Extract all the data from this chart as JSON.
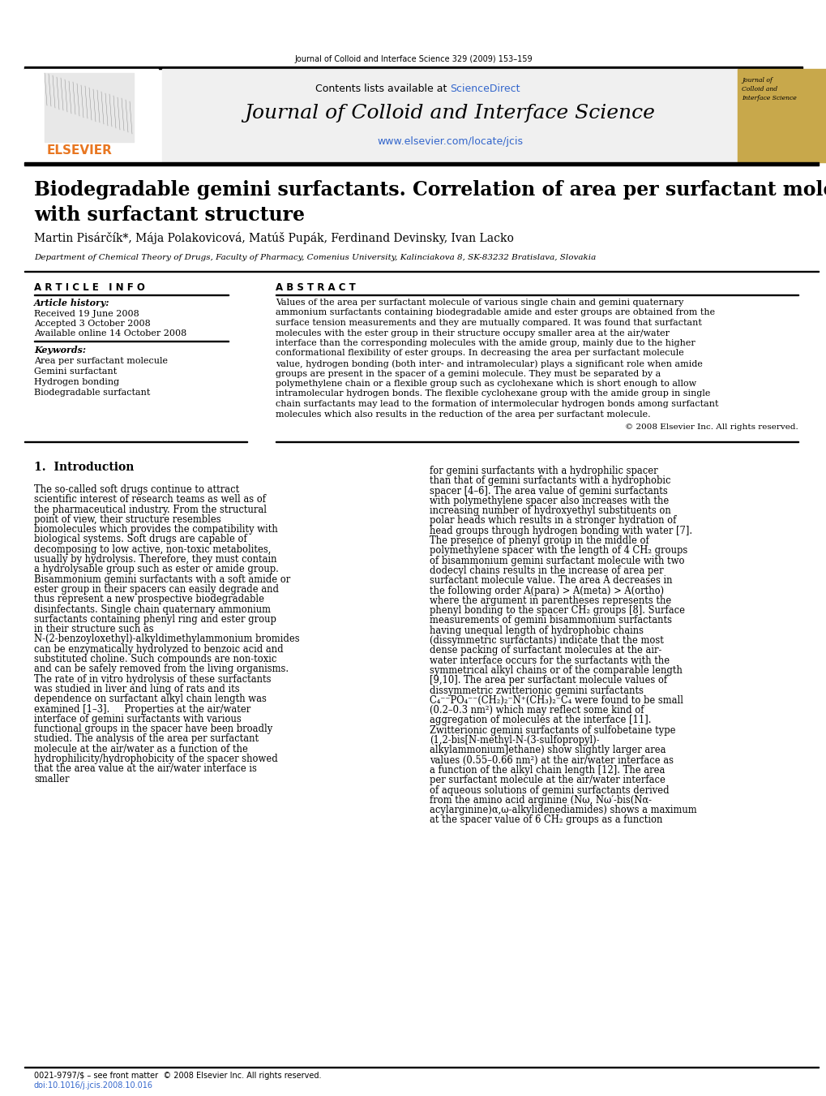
{
  "journal_ref": "Journal of Colloid and Interface Science 329 (2009) 153–159",
  "header_text": "Contents lists available at ScienceDirect",
  "journal_title": "Journal of Colloid and Interface Science",
  "journal_url": "www.elsevier.com/locate/jcis",
  "paper_title": "Biodegradable gemini surfactants. Correlation of area per surfactant molecule\nwith surfactant structure",
  "authors": "Martin Pisárčík*, Mája Polakovicová, Matúš Pupák, Ferdinand Devinsky, Ivan Lacko",
  "affiliation": "Department of Chemical Theory of Drugs, Faculty of Pharmacy, Comenius University, Kalinciakova 8, SK-83232 Bratislava, Slovakia",
  "article_info_header": "A R T I C L E   I N F O",
  "abstract_header": "A B S T R A C T",
  "article_history_label": "Article history:",
  "received": "Received 19 June 2008",
  "accepted": "Accepted 3 October 2008",
  "available": "Available online 14 October 2008",
  "keywords_label": "Keywords:",
  "keywords": [
    "Area per surfactant molecule",
    "Gemini surfactant",
    "Hydrogen bonding",
    "Biodegradable surfactant"
  ],
  "abstract_text": "Values of the area per surfactant molecule of various single chain and gemini quaternary ammonium surfactants containing biodegradable amide and ester groups are obtained from the surface tension measurements and they are mutually compared. It was found that surfactant molecules with the ester group in their structure occupy smaller area at the air/water interface than the corresponding molecules with the amide group, mainly due to the higher conformational flexibility of ester groups. In decreasing the area per surfactant molecule value, hydrogen bonding (both inter- and intramolecular) plays a significant role when amide groups are present in the spacer of a gemini molecule. They must be separated by a polymethylene chain or a flexible group such as cyclohexane which is short enough to allow intramolecular hydrogen bonds. The flexible cyclohexane group with the amide group in single chain surfactants may lead to the formation of intermolecular hydrogen bonds among surfactant molecules which also results in the reduction of the area per surfactant molecule.",
  "copyright": "© 2008 Elsevier Inc. All rights reserved.",
  "section1_title": "1.  Introduction",
  "intro_left": "The so-called soft drugs continue to attract scientific interest of research teams as well as of the pharmaceutical industry. From the structural point of view, their structure resembles biomolecules which provides the compatibility with biological systems. Soft drugs are capable of decomposing to low active, non-toxic metabolites, usually by hydrolysis. Therefore, they must contain a hydrolysable group such as ester or amide group. Bisammonium gemini surfactants with a soft amide or ester group in their spacers can easily degrade and thus represent a new prospective biodegradable disinfectants. Single chain quaternary ammonium surfactants containing phenyl ring and ester group in their structure such as N-(2-benzoyloxethyl)-alkyldimethylammonium bromides can be enzymatically hydrolyzed to benzoic acid and substituted choline. Such compounds are non-toxic and can be safely removed from the living organisms. The rate of in vitro hydrolysis of these surfactants was studied in liver and lung of rats and its dependence on surfactant alkyl chain length was examined [1–3].\n    Properties at the air/water interface of gemini surfactants with various functional groups in the spacer have been broadly studied. The analysis of the area per surfactant molecule at the air/water as a function of the hydrophilicity/hydrophobicity of the spacer showed that the area value at the air/water interface is smaller",
  "intro_right": "for gemini surfactants with a hydrophilic spacer than that of gemini surfactants with a hydrophobic spacer [4–6]. The area value of gemini surfactants with polymethylene spacer also increases with the increasing number of hydroxyethyl substituents on polar heads which results in a stronger hydration of head groups through hydrogen bonding with water [7]. The presence of phenyl group in the middle of polymethylene spacer with the length of 4 CH₂ groups of bisammonium gemini surfactant molecule with two dodecyl chains results in the increase of area per surfactant molecule value. The area A decreases in the following order A(para) > A(meta) > A(ortho) where the argument in parentheses represents the phenyl bonding to the spacer CH₂ groups [8]. Surface measurements of gemini bisammonium surfactants having unequal length of hydrophobic chains (dissymmetric surfactants) indicate that the most dense packing of surfactant molecules at the air-water interface occurs for the surfactants with the symmetrical alkyl chains or of the comparable length [9,10]. The area per surfactant molecule values of dissymmetric zwitterionic gemini surfactants C₄⁻⁻PO₄⁻⁻(CH₂)₂⁻N⁺(CH₃)₂⁻C₄ were found to be small (0.2–0.3 nm²) which may reflect some kind of aggregation of molecules at the interface [11]. Zwitterionic gemini surfactants of sulfobetaine type (1,2-bis[N-methyl-N-(3-sulfopropyl)-alkylammonium]ethane) show slightly larger area values (0.55–0.66 nm²) at the air/water interface as a function of the alkyl chain length [12]. The area per surfactant molecule at the air/water interface of aqueous solutions of gemini surfactants derived from the amino acid arginine (Nω, Nω′-bis(Nα-acylarginine)α,ω-alkylidenediamides) shows a maximum at the spacer value of 6 CH₂ groups as a function",
  "footer_left": "0021-9797/$ – see front matter  © 2008 Elsevier Inc. All rights reserved.",
  "footer_doi": "doi:10.1016/j.jcis.2008.10.016",
  "bg_color": "#ffffff",
  "header_bg": "#f0f0f0",
  "gold_color": "#c8a84b",
  "elsevier_orange": "#e87722",
  "text_color": "#000000",
  "link_color": "#3366cc",
  "divider_color": "#000000"
}
